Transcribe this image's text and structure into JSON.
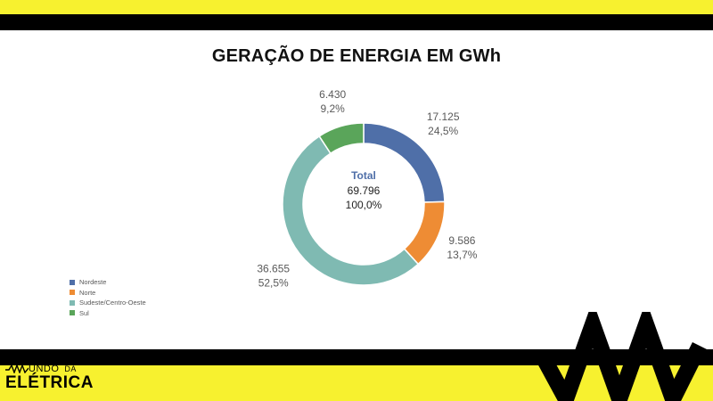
{
  "chart_data": {
    "type": "pie",
    "variant": "donut",
    "title": "GERAÇÃO DE ENERGIA EM GWh",
    "center": {
      "label": "Total",
      "value": "69.796",
      "percent": "100,0%"
    },
    "slices": [
      {
        "name": "Nordeste",
        "value": 17125,
        "value_label": "17.125",
        "percent_label": "24,5%",
        "color": "#4f6fa8"
      },
      {
        "name": "Norte",
        "value": 9586,
        "value_label": "9.586",
        "percent_label": "13,7%",
        "color": "#ee8c34"
      },
      {
        "name": "Sudeste/Centro-Oeste",
        "value": 36655,
        "value_label": "36.655",
        "percent_label": "52,5%",
        "color": "#7fbab2"
      },
      {
        "name": "Sul",
        "value": 6430,
        "value_label": "6.430",
        "percent_label": "9,2%",
        "color": "#5aa55a"
      }
    ],
    "legend_position": "bottom-left"
  },
  "logo": {
    "line1": "UNDO",
    "line1_small": "DA",
    "line2": "ELÉTRICA"
  },
  "colors": {
    "brand_yellow": "#f7f12f",
    "bar_black": "#000000"
  }
}
